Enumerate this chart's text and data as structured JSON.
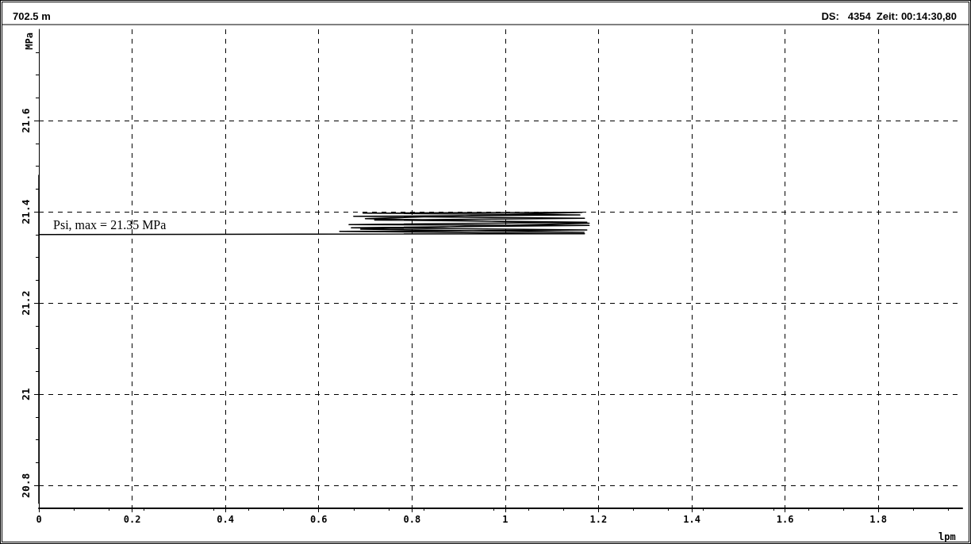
{
  "chart_data": {
    "type": "line",
    "title": "702.5 m",
    "subtitle": "DS:   4354  Zeit: 00:14:30,80",
    "xlabel": "lpm",
    "ylabel": "MPa",
    "annotations": [
      {
        "text": "Psi, max = 21.35 MPa",
        "x": 0,
        "y": 21.35
      }
    ],
    "x": [
      0,
      0,
      0,
      0,
      1.17,
      0.645,
      1.175,
      0.67,
      1.18,
      0.665,
      1.175,
      0.72,
      1.17,
      0.675,
      1.16,
      0.695,
      1.165,
      0.7,
      1.18,
      0.69,
      1.17
    ],
    "values": [
      20.76,
      21.48,
      21.22,
      21.35,
      21.352,
      21.357,
      21.36,
      21.365,
      21.37,
      21.372,
      21.377,
      21.382,
      21.386,
      21.39,
      21.393,
      21.397,
      21.399,
      21.385,
      21.375,
      21.362,
      21.355
    ],
    "color": "#000000",
    "marker": "none",
    "line_style": "solid",
    "xlim": [
      0,
      1.98
    ],
    "ylim": [
      20.75,
      21.8
    ],
    "xticks": [
      0,
      0.2,
      0.4,
      0.6,
      0.8,
      1,
      1.2,
      1.4,
      1.6,
      1.8
    ],
    "yticks": [
      20.8,
      21,
      21.2,
      21.4,
      21.6
    ],
    "grid": true
  }
}
